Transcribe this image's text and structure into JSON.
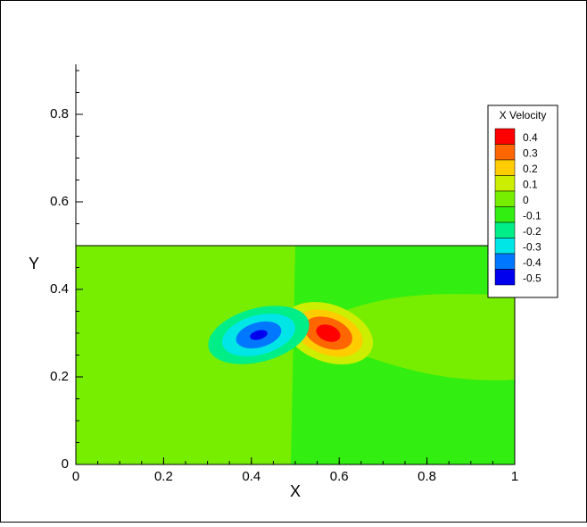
{
  "chart_data": {
    "type": "contour",
    "x_label": "X",
    "y_label": "Y",
    "xlim": [
      0,
      1
    ],
    "ylim": [
      0,
      0.9
    ],
    "xticks": [
      0,
      0.2,
      0.4,
      0.6,
      0.8,
      1
    ],
    "yticks": [
      0,
      0.2,
      0.4,
      0.6,
      0.8
    ],
    "domain": {
      "x": [
        0,
        1
      ],
      "y": [
        0,
        0.5
      ]
    },
    "legend_title": "X Velocity",
    "legend_position": "right",
    "levels": [
      0.4,
      0.3,
      0.2,
      0.1,
      0,
      -0.1,
      -0.2,
      -0.3,
      -0.4,
      -0.5
    ],
    "level_colors": [
      "#ff0000",
      "#ff6600",
      "#ffcc00",
      "#ccee00",
      "#77ee00",
      "#33ee11",
      "#00ee88",
      "#00e6e6",
      "#0077ff",
      "#0000ee"
    ]
  }
}
